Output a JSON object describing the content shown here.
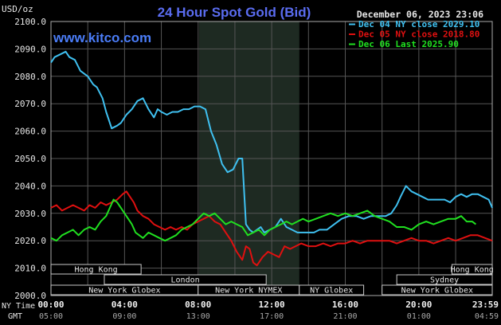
{
  "chart_data": {
    "type": "line",
    "title": "24 Hour Spot Gold (Bid)",
    "watermark": "www.kitco.com",
    "timestamp": "December 06, 2023 23:06",
    "y_unit": "USD/oz",
    "ylim": [
      2000,
      2100
    ],
    "y_ticks": [
      "2100.0",
      "2090.0",
      "2080.0",
      "2070.0",
      "2060.0",
      "2050.0",
      "2040.0",
      "2030.0",
      "2020.0",
      "2010.0",
      "2000.0"
    ],
    "x_ticks": [
      "00:00",
      "04:00",
      "08:00",
      "12:00",
      "16:00",
      "20:00",
      "23:59"
    ],
    "gmt_ticks": [
      "05:00",
      "09:00",
      "13:00",
      "17:00",
      "21:00",
      "01:00",
      "04:59"
    ],
    "x_axis_label_1": "NY Time",
    "x_axis_label_2": "GMT",
    "grid": true,
    "legend_position": "top-right",
    "highlight_hours": [
      8.05,
      13.5
    ],
    "series": [
      {
        "name": "Dec 04 NY close 2029.10",
        "color": "#3FC0F0",
        "x": [
          0,
          0.2,
          0.5,
          0.8,
          1.0,
          1.3,
          1.6,
          2.0,
          2.3,
          2.5,
          2.8,
          3.0,
          3.3,
          3.6,
          3.8,
          4.1,
          4.4,
          4.7,
          5.0,
          5.3,
          5.6,
          5.8,
          6.0,
          6.3,
          6.6,
          6.9,
          7.2,
          7.5,
          7.8,
          8.1,
          8.4,
          8.7,
          9.0,
          9.3,
          9.6,
          9.9,
          10.2,
          10.4,
          10.6,
          10.8,
          11.0,
          11.2,
          11.4,
          11.6,
          11.9,
          12.2,
          12.5,
          12.8,
          13.1,
          13.4,
          13.7,
          14.0,
          14.3,
          14.6,
          15.0,
          15.4,
          15.8,
          16.2,
          16.6,
          17.0,
          17.4,
          17.8,
          18.2,
          18.5,
          18.8,
          19.0,
          19.3,
          19.6,
          19.9,
          20.2,
          20.5,
          20.8,
          21.1,
          21.4,
          21.7,
          22.0,
          22.3,
          22.6,
          22.9,
          23.2,
          23.5,
          23.8,
          23.99
        ],
        "y": [
          2085,
          2087,
          2088,
          2089,
          2087,
          2086,
          2082,
          2080,
          2077,
          2076,
          2072,
          2067,
          2061,
          2062,
          2063,
          2066,
          2068,
          2071,
          2072,
          2068,
          2065,
          2068,
          2067,
          2066,
          2067,
          2067,
          2068,
          2068,
          2069,
          2069,
          2068,
          2060,
          2055,
          2048,
          2045,
          2046,
          2050,
          2050,
          2026,
          2024,
          2023,
          2024,
          2025,
          2023,
          2024,
          2025,
          2028,
          2025,
          2024,
          2023,
          2023,
          2023,
          2023,
          2024,
          2024,
          2026,
          2028,
          2029,
          2029,
          2028,
          2029,
          2029,
          2029,
          2030,
          2033,
          2036,
          2040,
          2038,
          2037,
          2036,
          2035,
          2035,
          2035,
          2035,
          2034,
          2036,
          2037,
          2036,
          2037,
          2037,
          2036,
          2035,
          2032
        ]
      },
      {
        "name": "Dec 05 NY close 2018.80",
        "color": "#E01010",
        "x": [
          0,
          0.3,
          0.6,
          0.9,
          1.2,
          1.5,
          1.8,
          2.1,
          2.4,
          2.7,
          3.0,
          3.3,
          3.6,
          3.9,
          4.1,
          4.3,
          4.5,
          4.7,
          5.0,
          5.3,
          5.6,
          5.9,
          6.2,
          6.5,
          6.8,
          7.1,
          7.4,
          7.7,
          8.0,
          8.3,
          8.6,
          8.9,
          9.2,
          9.5,
          9.8,
          10.1,
          10.4,
          10.6,
          10.8,
          11.0,
          11.2,
          11.5,
          11.8,
          12.1,
          12.4,
          12.7,
          13.0,
          13.3,
          13.6,
          14.0,
          14.4,
          14.8,
          15.2,
          15.6,
          16.0,
          16.4,
          16.8,
          17.2,
          17.6,
          18.0,
          18.4,
          18.8,
          19.2,
          19.6,
          20.0,
          20.4,
          20.8,
          21.2,
          21.6,
          22.0,
          22.4,
          22.8,
          23.2,
          23.6,
          23.99
        ],
        "y": [
          2032,
          2033,
          2031,
          2032,
          2033,
          2032,
          2031,
          2033,
          2032,
          2034,
          2033,
          2034,
          2035,
          2037,
          2038,
          2036,
          2034,
          2031,
          2029,
          2028,
          2026,
          2025,
          2024,
          2025,
          2024,
          2025,
          2024,
          2026,
          2027,
          2028,
          2029,
          2027,
          2026,
          2023,
          2020,
          2016,
          2013,
          2018,
          2017,
          2012,
          2011,
          2014,
          2016,
          2015,
          2014,
          2018,
          2017,
          2018,
          2019,
          2018,
          2018,
          2019,
          2018,
          2019,
          2019,
          2020,
          2019,
          2020,
          2020,
          2020,
          2020,
          2019,
          2020,
          2021,
          2020,
          2020,
          2019,
          2020,
          2021,
          2020,
          2021,
          2022,
          2022,
          2021,
          2020
        ]
      },
      {
        "name": "Dec 06 Last 2025.90",
        "color": "#20E020",
        "x": [
          0,
          0.3,
          0.6,
          0.9,
          1.2,
          1.5,
          1.8,
          2.1,
          2.4,
          2.7,
          3.0,
          3.2,
          3.4,
          3.6,
          3.8,
          4.0,
          4.2,
          4.4,
          4.6,
          4.8,
          5.0,
          5.3,
          5.6,
          5.9,
          6.2,
          6.5,
          6.8,
          7.1,
          7.4,
          7.7,
          8.0,
          8.3,
          8.6,
          8.9,
          9.2,
          9.5,
          9.8,
          10.1,
          10.4,
          10.7,
          11.0,
          11.3,
          11.6,
          11.9,
          12.2,
          12.5,
          12.8,
          13.1,
          13.4,
          13.7,
          14.0,
          14.4,
          14.8,
          15.2,
          15.6,
          16.0,
          16.4,
          16.8,
          17.2,
          17.6,
          18.0,
          18.4,
          18.8,
          19.2,
          19.6,
          20.0,
          20.4,
          20.8,
          21.2,
          21.6,
          22.0,
          22.3,
          22.6,
          22.9,
          23.1
        ],
        "y": [
          2021,
          2020,
          2022,
          2023,
          2024,
          2022,
          2024,
          2025,
          2024,
          2027,
          2029,
          2032,
          2035,
          2034,
          2032,
          2030,
          2028,
          2026,
          2023,
          2022,
          2021,
          2023,
          2022,
          2021,
          2020,
          2021,
          2022,
          2024,
          2025,
          2026,
          2028,
          2030,
          2029,
          2030,
          2028,
          2026,
          2027,
          2026,
          2025,
          2022,
          2023,
          2024,
          2022,
          2024,
          2025,
          2026,
          2027,
          2026,
          2027,
          2028,
          2027,
          2028,
          2029,
          2030,
          2029,
          2030,
          2029,
          2030,
          2031,
          2029,
          2028,
          2027,
          2025,
          2025,
          2024,
          2026,
          2027,
          2026,
          2027,
          2028,
          2028,
          2029,
          2027,
          2027,
          2026
        ]
      }
    ],
    "sessions": [
      {
        "name": "Hong Kong",
        "start": 0,
        "end": 4.9,
        "row": 0
      },
      {
        "name": "Hong Kong",
        "start": 21.8,
        "end": 23.99,
        "row": 0
      },
      {
        "name": "London",
        "start": 2.9,
        "end": 11.7,
        "row": 1
      },
      {
        "name": "Sydney",
        "start": 18.8,
        "end": 23.99,
        "row": 1
      },
      {
        "name": "New York Globex",
        "start": 0,
        "end": 8.0,
        "row": 2
      },
      {
        "name": "New York NYMEX",
        "start": 8.0,
        "end": 13.5,
        "row": 2
      },
      {
        "name": "NY Globex",
        "start": 13.5,
        "end": 17.0,
        "row": 2
      },
      {
        "name": "New York Globex",
        "start": 18.0,
        "end": 23.99,
        "row": 2
      }
    ]
  }
}
